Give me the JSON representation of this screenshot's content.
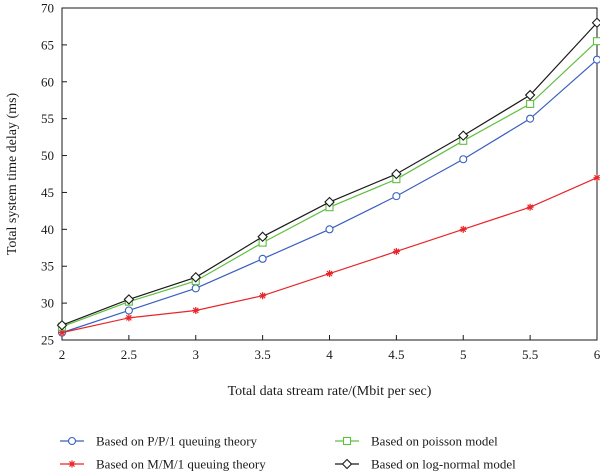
{
  "chart_data": {
    "type": "line",
    "xlabel": "Total data stream rate/(Mbit per sec)",
    "ylabel": "Total system time delay (ms)",
    "xlim": [
      2,
      6
    ],
    "ylim": [
      25,
      70
    ],
    "x_ticks": [
      "2",
      "2.5",
      "3",
      "3.5",
      "4",
      "4.5",
      "5",
      "5.5",
      "6"
    ],
    "y_ticks": [
      "25",
      "30",
      "35",
      "40",
      "45",
      "50",
      "55",
      "60",
      "65",
      "70"
    ],
    "grid": false,
    "legend_position": "bottom",
    "x": [
      2,
      2.5,
      3,
      3.5,
      4,
      4.5,
      5,
      5.5,
      6
    ],
    "series": [
      {
        "name": "Based on P/P/1 queuing theory",
        "marker": "circle",
        "color": "#3a5fbf",
        "values": [
          26,
          29,
          32,
          36,
          40,
          44.5,
          49.5,
          55,
          63
        ]
      },
      {
        "name": "Based on M/M/1 queuing theory",
        "marker": "star",
        "color": "#e8262a",
        "values": [
          26,
          28,
          29,
          31,
          34,
          37,
          40,
          43,
          47
        ]
      },
      {
        "name": "Based on poisson model",
        "marker": "square",
        "color": "#5fbf3f",
        "values": [
          26.8,
          30.2,
          33,
          38.2,
          43,
          46.8,
          52,
          57,
          65.5
        ]
      },
      {
        "name": "Based on log-normal model",
        "marker": "diamond",
        "color": "#1a1a1a",
        "values": [
          27,
          30.5,
          33.5,
          39,
          43.7,
          47.5,
          52.7,
          58.2,
          68
        ]
      }
    ]
  }
}
